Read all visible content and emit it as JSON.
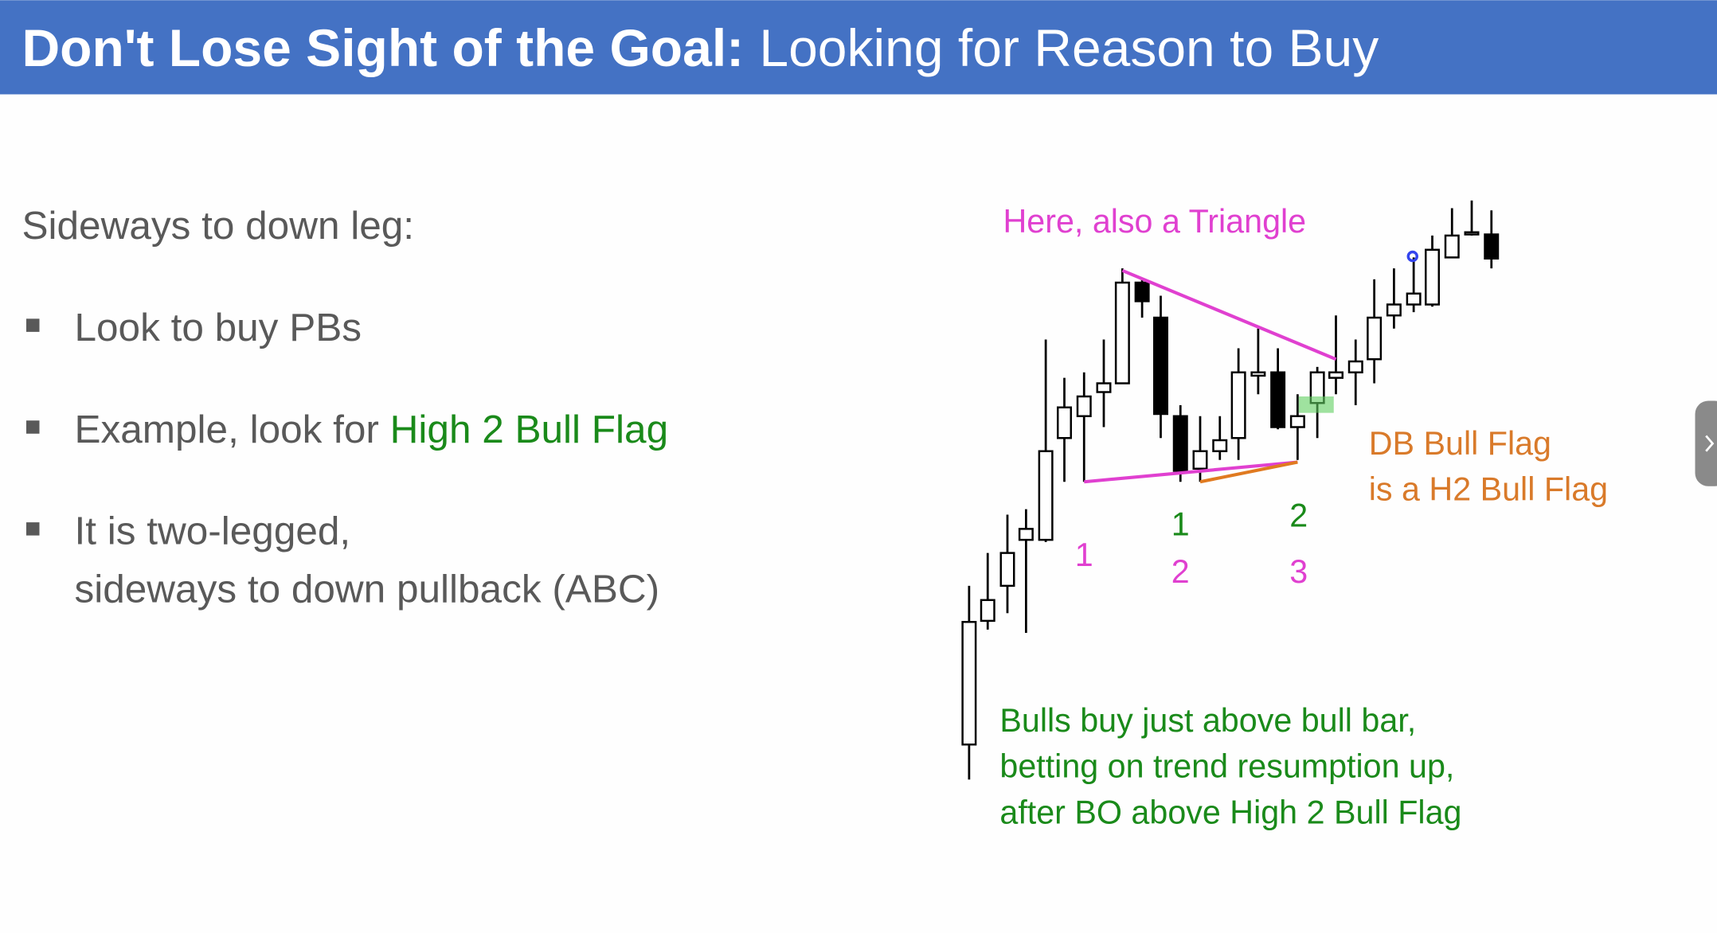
{
  "header": {
    "title_bold": "Don't Lose Sight of the Goal:",
    "title_rest": "Looking for Reason to Buy"
  },
  "body": {
    "heading": "Sideways to down leg:",
    "bullets": [
      {
        "text": "Look to buy PBs"
      },
      {
        "text": "Example, look for ",
        "highlight": "High 2 Bull Flag"
      },
      {
        "lines": [
          "It is two-legged,",
          "sideways to down pullback (ABC)"
        ]
      }
    ]
  },
  "chart_annotations": {
    "triangle_note": "Here, also a Triangle",
    "db_note": [
      "DB Bull Flag",
      "is a H2 Bull Flag"
    ],
    "bulls_note": [
      "Bulls buy just above bull bar,",
      "betting on trend resumption up,",
      "after BO above High 2 Bull Flag"
    ],
    "leg_labels": [
      {
        "magenta": "1"
      },
      {
        "green": "1",
        "magenta": "2"
      },
      {
        "green": "2",
        "magenta": "3"
      }
    ]
  }
}
